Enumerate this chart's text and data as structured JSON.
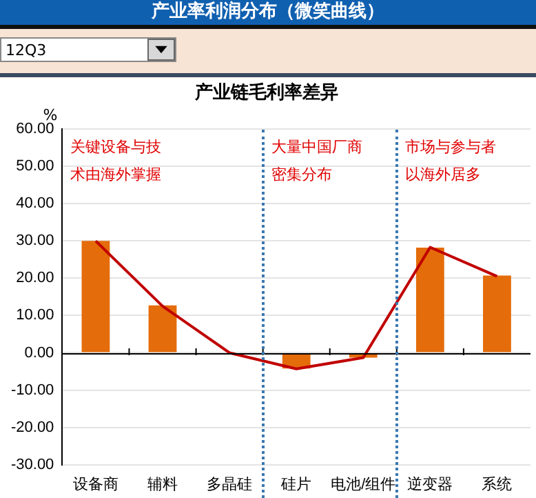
{
  "chart_data": {
    "type": "bar",
    "title": "产业链毛利率差异",
    "ylabel": "%",
    "annotations": [
      "产业率利润分布（微笑曲线）",
      "12Q3",
      "关键设备与技术由海外掌握",
      "大量中国厂商密集分布",
      "市场与参与者以海外居多"
    ],
    "categories": [
      "设备商",
      "辅料",
      "多晶硅",
      "硅片",
      "电池/组件",
      "逆变器",
      "系统"
    ],
    "series": [
      {
        "color": "#e46c0a",
        "values": [
          30,
          12.7,
          0,
          -4.2,
          -1.3,
          28.2,
          20.7
        ]
      },
      {
        "type": "line",
        "color": "#c00000",
        "values": [
          30,
          12.5,
          0,
          -4.3,
          -1.3,
          28.3,
          20.5
        ]
      }
    ],
    "ylim": [
      -30,
      60
    ],
    "yticks": [
      {
        "value": -30,
        "label": "-30.00"
      },
      {
        "value": -20,
        "label": "-20.00"
      },
      {
        "value": -10,
        "label": "-10.00"
      },
      {
        "value": 0,
        "label": "0.00"
      },
      {
        "value": 10,
        "label": "10.00"
      },
      {
        "value": 20,
        "label": "20.00"
      },
      {
        "value": 30,
        "label": "30.00"
      },
      {
        "value": 40,
        "label": "40.00"
      },
      {
        "value": 50,
        "label": "50.00"
      },
      {
        "value": 60,
        "label": "60.00"
      }
    ],
    "grid": "y",
    "legend": false,
    "marker": "none",
    "line_style": "solid"
  }
}
